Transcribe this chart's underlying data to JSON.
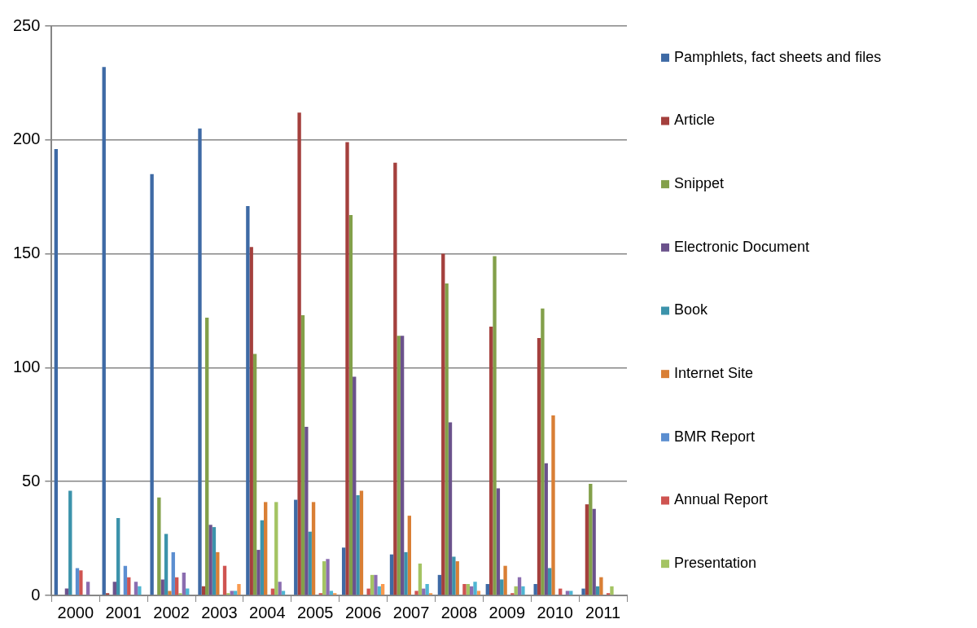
{
  "chart_data": {
    "type": "bar",
    "categories": [
      "2000",
      "2001",
      "2002",
      "2003",
      "2004",
      "2005",
      "2006",
      "2007",
      "2008",
      "2009",
      "2010",
      "2011"
    ],
    "ylim": [
      0,
      250
    ],
    "yticks": [
      0,
      50,
      100,
      150,
      200,
      250
    ],
    "grid": "y",
    "legend": "right",
    "series": [
      {
        "name": "Pamphlets, fact sheets and files",
        "color": "#3e6aa5",
        "values": [
          196,
          232,
          185,
          205,
          171,
          42,
          21,
          18,
          9,
          5,
          5,
          3
        ]
      },
      {
        "name": "Article",
        "color": "#a4403d",
        "values": [
          0,
          1,
          0,
          4,
          153,
          212,
          199,
          190,
          150,
          118,
          113,
          40
        ]
      },
      {
        "name": "Snippet",
        "color": "#83a04a",
        "values": [
          0,
          0,
          43,
          122,
          106,
          123,
          167,
          114,
          137,
          149,
          126,
          49
        ]
      },
      {
        "name": "Electronic Document",
        "color": "#6b528c",
        "values": [
          3,
          6,
          7,
          31,
          20,
          74,
          96,
          114,
          76,
          47,
          58,
          38
        ]
      },
      {
        "name": "Book",
        "color": "#3c93ab",
        "values": [
          46,
          34,
          27,
          30,
          33,
          28,
          44,
          19,
          17,
          7,
          12,
          4
        ]
      },
      {
        "name": "Internet Site",
        "color": "#d97f35",
        "values": [
          0,
          0,
          2,
          19,
          41,
          41,
          46,
          35,
          15,
          13,
          79,
          8
        ]
      },
      {
        "name": "BMR Report",
        "color": "#5b8ed0",
        "values": [
          12,
          13,
          19,
          0,
          0,
          0,
          0,
          0,
          0,
          0,
          0,
          0
        ]
      },
      {
        "name": "Annual Report",
        "color": "#cf5451",
        "values": [
          11,
          8,
          8,
          13,
          3,
          1,
          3,
          2,
          5,
          1,
          3,
          1
        ]
      },
      {
        "name": "Presentation",
        "color": "#a4c463",
        "values": [
          0,
          0,
          1,
          1,
          41,
          15,
          9,
          14,
          5,
          4,
          0,
          4
        ]
      },
      {
        "color": "#8b6db0",
        "values": [
          6,
          6,
          10,
          2,
          6,
          16,
          9,
          3,
          4,
          8,
          2,
          0
        ]
      },
      {
        "color": "#4fb6d3",
        "values": [
          0,
          4,
          3,
          2,
          2,
          2,
          4,
          5,
          6,
          4,
          2,
          0
        ]
      },
      {
        "color": "#f99a4f",
        "values": [
          0,
          0,
          0,
          5,
          0,
          1,
          5,
          1,
          2,
          0,
          0,
          0
        ]
      }
    ]
  }
}
